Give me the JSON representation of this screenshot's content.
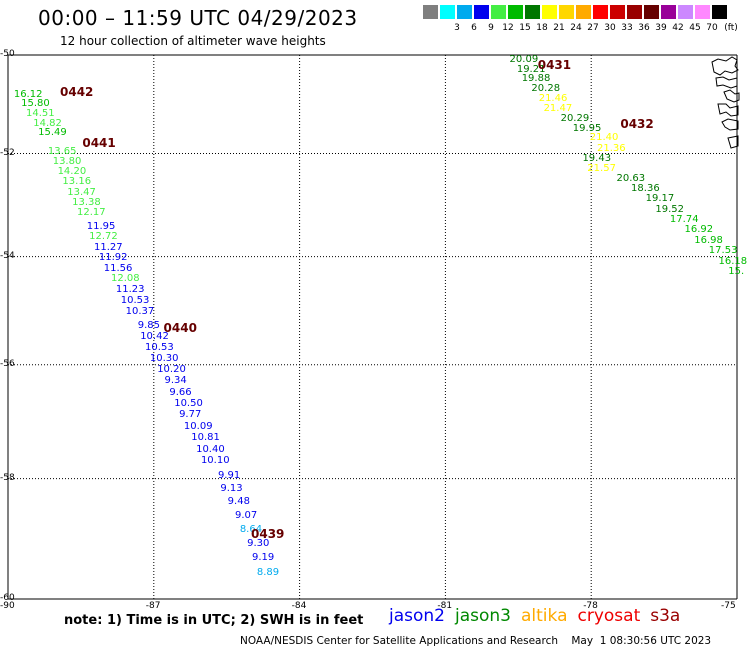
{
  "header": {
    "title": "00:00 – 11:59 UTC 04/29/2023",
    "subtitle": "12 hour collection of altimeter wave heights"
  },
  "legend": {
    "unit": "(ft)",
    "steps": [
      {
        "label": "",
        "color": "#7f7f7f"
      },
      {
        "label": "3",
        "color": "#00ffff"
      },
      {
        "label": "6",
        "color": "#00aaee"
      },
      {
        "label": "9",
        "color": "#0000ee"
      },
      {
        "label": "12",
        "color": "#44ee44"
      },
      {
        "label": "15",
        "color": "#00bb00"
      },
      {
        "label": "18",
        "color": "#007700"
      },
      {
        "label": "21",
        "color": "#ffff00"
      },
      {
        "label": "24",
        "color": "#ffd700"
      },
      {
        "label": "27",
        "color": "#ffaa00"
      },
      {
        "label": "30",
        "color": "#ff0000"
      },
      {
        "label": "33",
        "color": "#cc0000"
      },
      {
        "label": "36",
        "color": "#990000"
      },
      {
        "label": "39",
        "color": "#660000"
      },
      {
        "label": "42",
        "color": "#990099"
      },
      {
        "label": "45",
        "color": "#cc88ff"
      },
      {
        "label": "70",
        "color": "#ff88ff"
      },
      {
        "label": "",
        "color": "#000000"
      }
    ]
  },
  "map": {
    "lat_labels": [
      "-50",
      "-52",
      "-54",
      "-56",
      "-58",
      "-60"
    ],
    "lon_labels": [
      "-90",
      "-87",
      "-84",
      "-81",
      "-78",
      "-75"
    ],
    "pass_color": "#660000",
    "passes": [
      {
        "id": "0442",
        "lon": -88.93,
        "lat": -50.77
      },
      {
        "id": "0441",
        "lon": -88.47,
        "lat": -51.8
      },
      {
        "id": "0440",
        "lon": -86.8,
        "lat": -55.33
      },
      {
        "id": "0439",
        "lon": -85.0,
        "lat": -58.93
      },
      {
        "id": "0431",
        "lon": -79.1,
        "lat": -50.2
      },
      {
        "id": "0432",
        "lon": -77.4,
        "lat": -51.4
      }
    ],
    "tracks": [
      {
        "name": "track-0442",
        "points": [
          {
            "v": "16.12",
            "lon": -89.88,
            "lat": -50.83,
            "c": "#00bb00"
          },
          {
            "v": "15.80",
            "lon": -89.73,
            "lat": -51.0,
            "c": "#00bb00"
          },
          {
            "v": "14.51",
            "lon": -89.63,
            "lat": -51.2,
            "c": "#44ee44"
          },
          {
            "v": "14.82",
            "lon": -89.48,
            "lat": -51.4,
            "c": "#44ee44"
          },
          {
            "v": "15.49",
            "lon": -89.38,
            "lat": -51.6,
            "c": "#00bb00"
          }
        ]
      },
      {
        "name": "track-0441",
        "points": [
          {
            "v": "13.65",
            "lon": -89.18,
            "lat": -51.97,
            "c": "#44ee44"
          },
          {
            "v": "13.80",
            "lon": -89.08,
            "lat": -52.17,
            "c": "#44ee44"
          },
          {
            "v": "14.20",
            "lon": -88.98,
            "lat": -52.37,
            "c": "#44ee44"
          },
          {
            "v": "13.16",
            "lon": -88.88,
            "lat": -52.57,
            "c": "#44ee44"
          },
          {
            "v": "13.47",
            "lon": -88.78,
            "lat": -52.77,
            "c": "#44ee44"
          },
          {
            "v": "13.38",
            "lon": -88.68,
            "lat": -52.97,
            "c": "#44ee44"
          },
          {
            "v": "12.17",
            "lon": -88.58,
            "lat": -53.17,
            "c": "#44ee44"
          },
          {
            "v": "11.95",
            "lon": -88.38,
            "lat": -53.43,
            "c": "#0000ee"
          },
          {
            "v": "12.72",
            "lon": -88.33,
            "lat": -53.63,
            "c": "#44ee44"
          },
          {
            "v": "11.27",
            "lon": -88.23,
            "lat": -53.83,
            "c": "#0000ee"
          },
          {
            "v": "11.92",
            "lon": -88.13,
            "lat": -54.03,
            "c": "#0000ee"
          },
          {
            "v": "11.56",
            "lon": -88.03,
            "lat": -54.23,
            "c": "#0000ee"
          },
          {
            "v": "12.08",
            "lon": -87.88,
            "lat": -54.43,
            "c": "#44ee44"
          },
          {
            "v": "11.23",
            "lon": -87.78,
            "lat": -54.63,
            "c": "#0000ee"
          },
          {
            "v": "10.53",
            "lon": -87.68,
            "lat": -54.83,
            "c": "#0000ee"
          },
          {
            "v": "10.37",
            "lon": -87.58,
            "lat": -55.03,
            "c": "#0000ee"
          }
        ]
      },
      {
        "name": "track-0440",
        "points": [
          {
            "v": "9.85",
            "lon": -87.33,
            "lat": -55.3,
            "c": "#0000ee"
          },
          {
            "v": "10.42",
            "lon": -87.28,
            "lat": -55.5,
            "c": "#0000ee"
          },
          {
            "v": "10.53",
            "lon": -87.18,
            "lat": -55.7,
            "c": "#0000ee"
          },
          {
            "v": "10.30",
            "lon": -87.08,
            "lat": -55.9,
            "c": "#0000ee"
          },
          {
            "v": "10.20",
            "lon": -86.93,
            "lat": -56.1,
            "c": "#0000ee"
          },
          {
            "v": "9.34",
            "lon": -86.78,
            "lat": -56.3,
            "c": "#0000ee"
          },
          {
            "v": "9.66",
            "lon": -86.68,
            "lat": -56.5,
            "c": "#0000ee"
          },
          {
            "v": "10.50",
            "lon": -86.58,
            "lat": -56.7,
            "c": "#0000ee"
          },
          {
            "v": "9.77",
            "lon": -86.48,
            "lat": -56.9,
            "c": "#0000ee"
          },
          {
            "v": "10.09",
            "lon": -86.38,
            "lat": -57.1,
            "c": "#0000ee"
          },
          {
            "v": "10.81",
            "lon": -86.23,
            "lat": -57.3,
            "c": "#0000ee"
          },
          {
            "v": "10.40",
            "lon": -86.13,
            "lat": -57.5,
            "c": "#0000ee"
          },
          {
            "v": "10.10",
            "lon": -86.03,
            "lat": -57.7,
            "c": "#0000ee"
          },
          {
            "v": "9.91",
            "lon": -85.68,
            "lat": -57.95,
            "c": "#0000ee"
          }
        ]
      },
      {
        "name": "track-0439",
        "points": [
          {
            "v": "9.13",
            "lon": -85.63,
            "lat": -58.17,
            "c": "#0000ee"
          },
          {
            "v": "9.48",
            "lon": -85.48,
            "lat": -58.4,
            "c": "#0000ee"
          },
          {
            "v": "9.07",
            "lon": -85.33,
            "lat": -58.63,
            "c": "#0000ee"
          },
          {
            "v": "8.64",
            "lon": -85.23,
            "lat": -58.87,
            "c": "#00aaee"
          },
          {
            "v": "9.30",
            "lon": -85.08,
            "lat": -59.1,
            "c": "#0000ee"
          },
          {
            "v": "9.19",
            "lon": -84.98,
            "lat": -59.33,
            "c": "#0000ee"
          },
          {
            "v": "8.89",
            "lon": -84.88,
            "lat": -59.57,
            "c": "#00aaee"
          }
        ]
      },
      {
        "name": "track-0431",
        "points": [
          {
            "v": "20.09",
            "lon": -79.68,
            "lat": -50.1,
            "c": "#007700"
          },
          {
            "v": "19.21",
            "lon": -79.53,
            "lat": -50.3,
            "c": "#007700"
          },
          {
            "v": "19.88",
            "lon": -79.43,
            "lat": -50.5,
            "c": "#007700"
          },
          {
            "v": "20.28",
            "lon": -79.23,
            "lat": -50.7,
            "c": "#007700"
          },
          {
            "v": "21.46",
            "lon": -79.08,
            "lat": -50.9,
            "c": "#ffff00"
          },
          {
            "v": "21.47",
            "lon": -78.98,
            "lat": -51.1,
            "c": "#ffff00"
          },
          {
            "v": "20.29",
            "lon": -78.63,
            "lat": -51.3,
            "c": "#007700"
          },
          {
            "v": "19.95",
            "lon": -78.38,
            "lat": -51.5,
            "c": "#007700"
          },
          {
            "v": "21.40",
            "lon": -78.03,
            "lat": -51.7,
            "c": "#ffff00"
          },
          {
            "v": "21.36",
            "lon": -77.88,
            "lat": -51.9,
            "c": "#ffff00"
          }
        ]
      },
      {
        "name": "track-0432",
        "points": [
          {
            "v": "19.43",
            "lon": -78.18,
            "lat": -52.1,
            "c": "#007700"
          },
          {
            "v": "21.57",
            "lon": -78.08,
            "lat": -52.3,
            "c": "#ffff00"
          },
          {
            "v": "20.63",
            "lon": -77.48,
            "lat": -52.5,
            "c": "#007700"
          },
          {
            "v": "18.36",
            "lon": -77.18,
            "lat": -52.7,
            "c": "#007700"
          },
          {
            "v": "19.17",
            "lon": -76.88,
            "lat": -52.9,
            "c": "#007700"
          },
          {
            "v": "19.52",
            "lon": -76.68,
            "lat": -53.1,
            "c": "#007700"
          },
          {
            "v": "17.74",
            "lon": -76.38,
            "lat": -53.3,
            "c": "#00bb00"
          },
          {
            "v": "16.92",
            "lon": -76.08,
            "lat": -53.5,
            "c": "#00bb00"
          },
          {
            "v": "16.98",
            "lon": -75.88,
            "lat": -53.7,
            "c": "#00bb00"
          },
          {
            "v": "17.53",
            "lon": -75.58,
            "lat": -53.9,
            "c": "#00bb00"
          },
          {
            "v": "16.18",
            "lon": -75.38,
            "lat": -54.1,
            "c": "#00bb00"
          },
          {
            "v": "15.",
            "lon": -75.18,
            "lat": -54.3,
            "c": "#00bb00"
          }
        ]
      }
    ]
  },
  "footer": {
    "note": "note:  1) Time is in UTC; 2) SWH is in feet",
    "satellites": [
      {
        "name": "jason2",
        "color": "#0000ee"
      },
      {
        "name": "jason3",
        "color": "#008800"
      },
      {
        "name": "altika",
        "color": "#ffaa00"
      },
      {
        "name": "cryosat",
        "color": "#ee0000"
      },
      {
        "name": "s3a",
        "color": "#990000"
      }
    ],
    "credit": "NOAA/NESDIS Center for Satellite Applications and Research    May  1 08:30:56 UTC 2023"
  }
}
